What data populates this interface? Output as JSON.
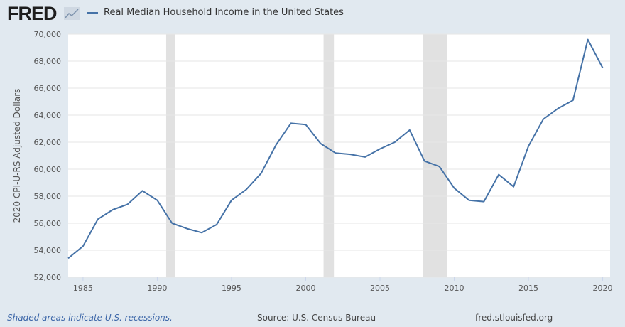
{
  "header": {
    "logo": "FRED",
    "legend_label": "Real Median Household Income in the United States"
  },
  "footer": {
    "recessions_note": "Shaded areas indicate U.S. recessions.",
    "source": "Source: U.S. Census Bureau",
    "url": "fred.stlouisfed.org"
  },
  "colors": {
    "line": "#4572a7",
    "recession": "#e1e1e1",
    "background": "#e1e9f0"
  },
  "chart_data": {
    "type": "line",
    "title": "Real Median Household Income in the United States",
    "xlabel": "",
    "ylabel": "2020 CPI-U-RS Adjusted Dollars",
    "xlim": [
      1984,
      2020.5
    ],
    "ylim": [
      52000,
      70000
    ],
    "xticks": [
      1985,
      1990,
      1995,
      2000,
      2005,
      2010,
      2015,
      2020
    ],
    "yticks": [
      52000,
      54000,
      56000,
      58000,
      60000,
      62000,
      64000,
      66000,
      68000,
      70000
    ],
    "ytick_labels": [
      "52,000",
      "54,000",
      "56,000",
      "58,000",
      "60,000",
      "62,000",
      "64,000",
      "66,000",
      "68,000",
      "70,000"
    ],
    "recessions": [
      [
        1990.6,
        1991.2
      ],
      [
        2001.2,
        2001.9
      ],
      [
        2007.9,
        2009.5
      ]
    ],
    "series": [
      {
        "name": "Real Median Household Income in the United States",
        "x": [
          1984,
          1985,
          1986,
          1987,
          1988,
          1989,
          1990,
          1991,
          1992,
          1993,
          1994,
          1995,
          1996,
          1997,
          1998,
          1999,
          2000,
          2001,
          2002,
          2003,
          2004,
          2005,
          2006,
          2007,
          2008,
          2009,
          2010,
          2011,
          2012,
          2013,
          2014,
          2015,
          2016,
          2017,
          2018,
          2019,
          2020
        ],
        "values": [
          53400,
          54300,
          56300,
          57000,
          57400,
          58400,
          57700,
          56000,
          55600,
          55300,
          55900,
          57700,
          58500,
          59700,
          61800,
          63400,
          63300,
          61900,
          61200,
          61100,
          60900,
          61500,
          62000,
          62900,
          60600,
          60200,
          58600,
          57700,
          57600,
          59600,
          58700,
          61700,
          63700,
          64500,
          65100,
          69600,
          67500
        ]
      }
    ]
  }
}
